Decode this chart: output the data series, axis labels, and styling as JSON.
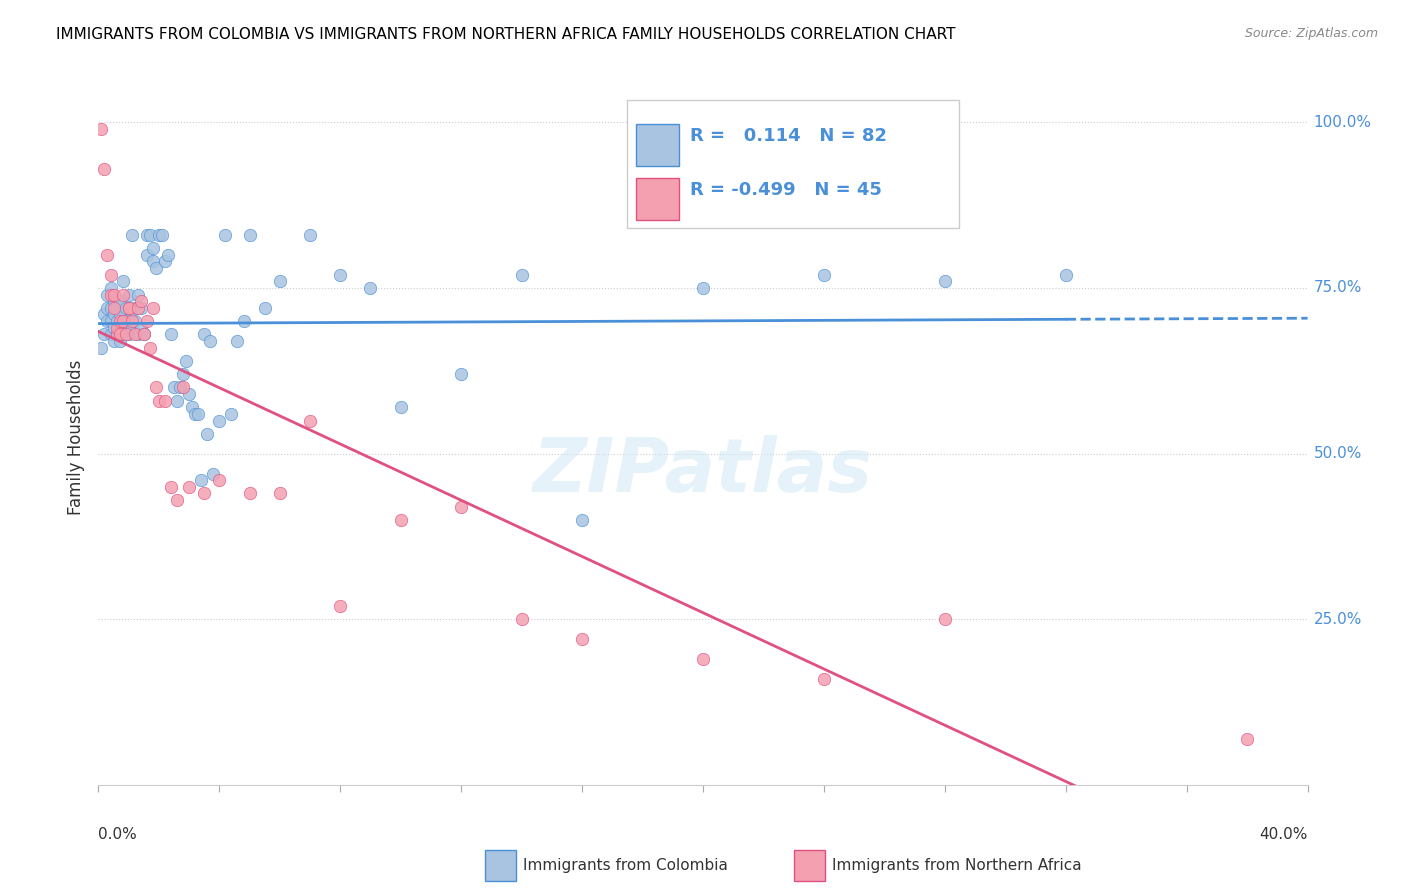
{
  "title": "IMMIGRANTS FROM COLOMBIA VS IMMIGRANTS FROM NORTHERN AFRICA FAMILY HOUSEHOLDS CORRELATION CHART",
  "source": "Source: ZipAtlas.com",
  "ylabel": "Family Households",
  "R_colombia": 0.114,
  "N_colombia": 82,
  "R_north_africa": -0.499,
  "N_north_africa": 45,
  "color_colombia": "#a8c4e0",
  "color_north_africa": "#f4a0b0",
  "color_trend_colombia": "#4a90d9",
  "color_trend_north_africa": "#e05080",
  "color_right_axis": "#4a90d9",
  "watermark": "ZIPatlas",
  "colombia_x": [
    0.001,
    0.002,
    0.002,
    0.003,
    0.003,
    0.003,
    0.004,
    0.004,
    0.004,
    0.004,
    0.005,
    0.005,
    0.005,
    0.005,
    0.006,
    0.006,
    0.006,
    0.007,
    0.007,
    0.007,
    0.007,
    0.008,
    0.008,
    0.008,
    0.009,
    0.009,
    0.01,
    0.01,
    0.01,
    0.011,
    0.011,
    0.012,
    0.012,
    0.013,
    0.013,
    0.014,
    0.014,
    0.015,
    0.016,
    0.016,
    0.017,
    0.018,
    0.018,
    0.019,
    0.02,
    0.021,
    0.022,
    0.023,
    0.024,
    0.025,
    0.026,
    0.027,
    0.028,
    0.029,
    0.03,
    0.031,
    0.032,
    0.033,
    0.034,
    0.035,
    0.036,
    0.037,
    0.038,
    0.04,
    0.042,
    0.044,
    0.046,
    0.048,
    0.05,
    0.055,
    0.06,
    0.07,
    0.08,
    0.09,
    0.1,
    0.12,
    0.14,
    0.16,
    0.2,
    0.24,
    0.28,
    0.32
  ],
  "colombia_y": [
    0.66,
    0.68,
    0.71,
    0.72,
    0.7,
    0.74,
    0.68,
    0.7,
    0.72,
    0.75,
    0.67,
    0.69,
    0.71,
    0.73,
    0.68,
    0.7,
    0.72,
    0.67,
    0.69,
    0.71,
    0.73,
    0.68,
    0.7,
    0.76,
    0.69,
    0.72,
    0.68,
    0.7,
    0.74,
    0.83,
    0.69,
    0.7,
    0.72,
    0.68,
    0.74,
    0.69,
    0.72,
    0.68,
    0.8,
    0.83,
    0.83,
    0.79,
    0.81,
    0.78,
    0.83,
    0.83,
    0.79,
    0.8,
    0.68,
    0.6,
    0.58,
    0.6,
    0.62,
    0.64,
    0.59,
    0.57,
    0.56,
    0.56,
    0.46,
    0.68,
    0.53,
    0.67,
    0.47,
    0.55,
    0.83,
    0.56,
    0.67,
    0.7,
    0.83,
    0.72,
    0.76,
    0.83,
    0.77,
    0.75,
    0.57,
    0.62,
    0.77,
    0.4,
    0.75,
    0.77,
    0.76,
    0.77
  ],
  "north_africa_x": [
    0.001,
    0.002,
    0.003,
    0.004,
    0.004,
    0.005,
    0.005,
    0.006,
    0.006,
    0.007,
    0.007,
    0.008,
    0.008,
    0.009,
    0.01,
    0.01,
    0.011,
    0.012,
    0.013,
    0.014,
    0.015,
    0.016,
    0.017,
    0.018,
    0.019,
    0.02,
    0.022,
    0.024,
    0.026,
    0.028,
    0.03,
    0.035,
    0.04,
    0.05,
    0.06,
    0.07,
    0.08,
    0.1,
    0.12,
    0.14,
    0.16,
    0.2,
    0.24,
    0.28,
    0.38
  ],
  "north_africa_y": [
    0.99,
    0.93,
    0.8,
    0.74,
    0.77,
    0.72,
    0.74,
    0.68,
    0.69,
    0.68,
    0.7,
    0.74,
    0.7,
    0.68,
    0.72,
    0.72,
    0.7,
    0.68,
    0.72,
    0.73,
    0.68,
    0.7,
    0.66,
    0.72,
    0.6,
    0.58,
    0.58,
    0.45,
    0.43,
    0.6,
    0.45,
    0.44,
    0.46,
    0.44,
    0.44,
    0.55,
    0.27,
    0.4,
    0.42,
    0.25,
    0.22,
    0.19,
    0.16,
    0.25,
    0.07
  ],
  "xmin": 0.0,
  "xmax": 0.4,
  "ymin": 0.0,
  "ymax": 1.05
}
